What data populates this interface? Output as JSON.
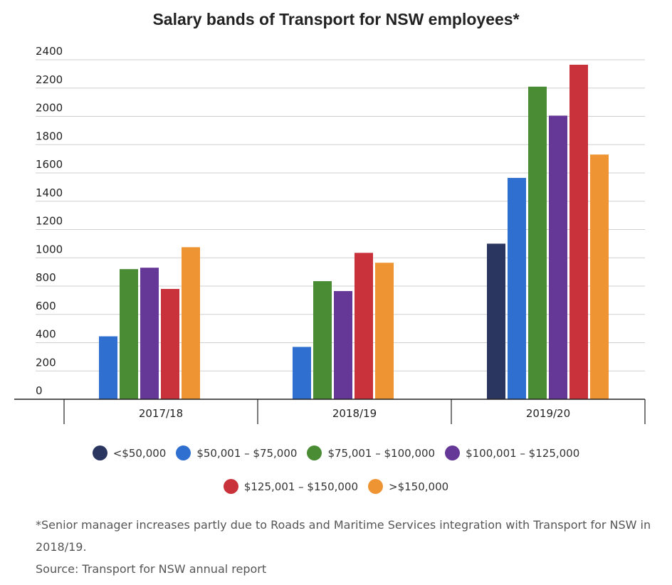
{
  "chart_data": {
    "type": "bar",
    "title": "Salary bands of Transport for NSW employees*",
    "categories": [
      "2017/18",
      "2018/19",
      "2019/20"
    ],
    "ylim": [
      0,
      2400
    ],
    "yticks": [
      0,
      200,
      400,
      600,
      800,
      1000,
      1200,
      1400,
      1600,
      1800,
      2000,
      2200,
      2400
    ],
    "grid": true,
    "legend_position": "bottom",
    "series": [
      {
        "name": "<$50,000",
        "color": "#2b3660",
        "values": [
          0,
          0,
          1100
        ]
      },
      {
        "name": "$50,001 – $75,000",
        "color": "#2f6fcf",
        "values": [
          445,
          370,
          1565
        ]
      },
      {
        "name": "$75,001 – $100,000",
        "color": "#4a8c34",
        "values": [
          920,
          835,
          2210
        ]
      },
      {
        "name": "$100,001 – $125,000",
        "color": "#653796",
        "values": [
          930,
          765,
          2005
        ]
      },
      {
        "name": "$125,001 – $150,000",
        "color": "#c9323a",
        "values": [
          780,
          1035,
          2365
        ]
      },
      {
        "name": ">$150,000",
        "color": "#ef9433",
        "values": [
          1075,
          965,
          1730
        ]
      }
    ]
  },
  "footnote": "*Senior manager increases partly due to Roads and Maritime Services integration with Transport for NSW in 2018/19.",
  "source": "Source: Transport for NSW annual report"
}
